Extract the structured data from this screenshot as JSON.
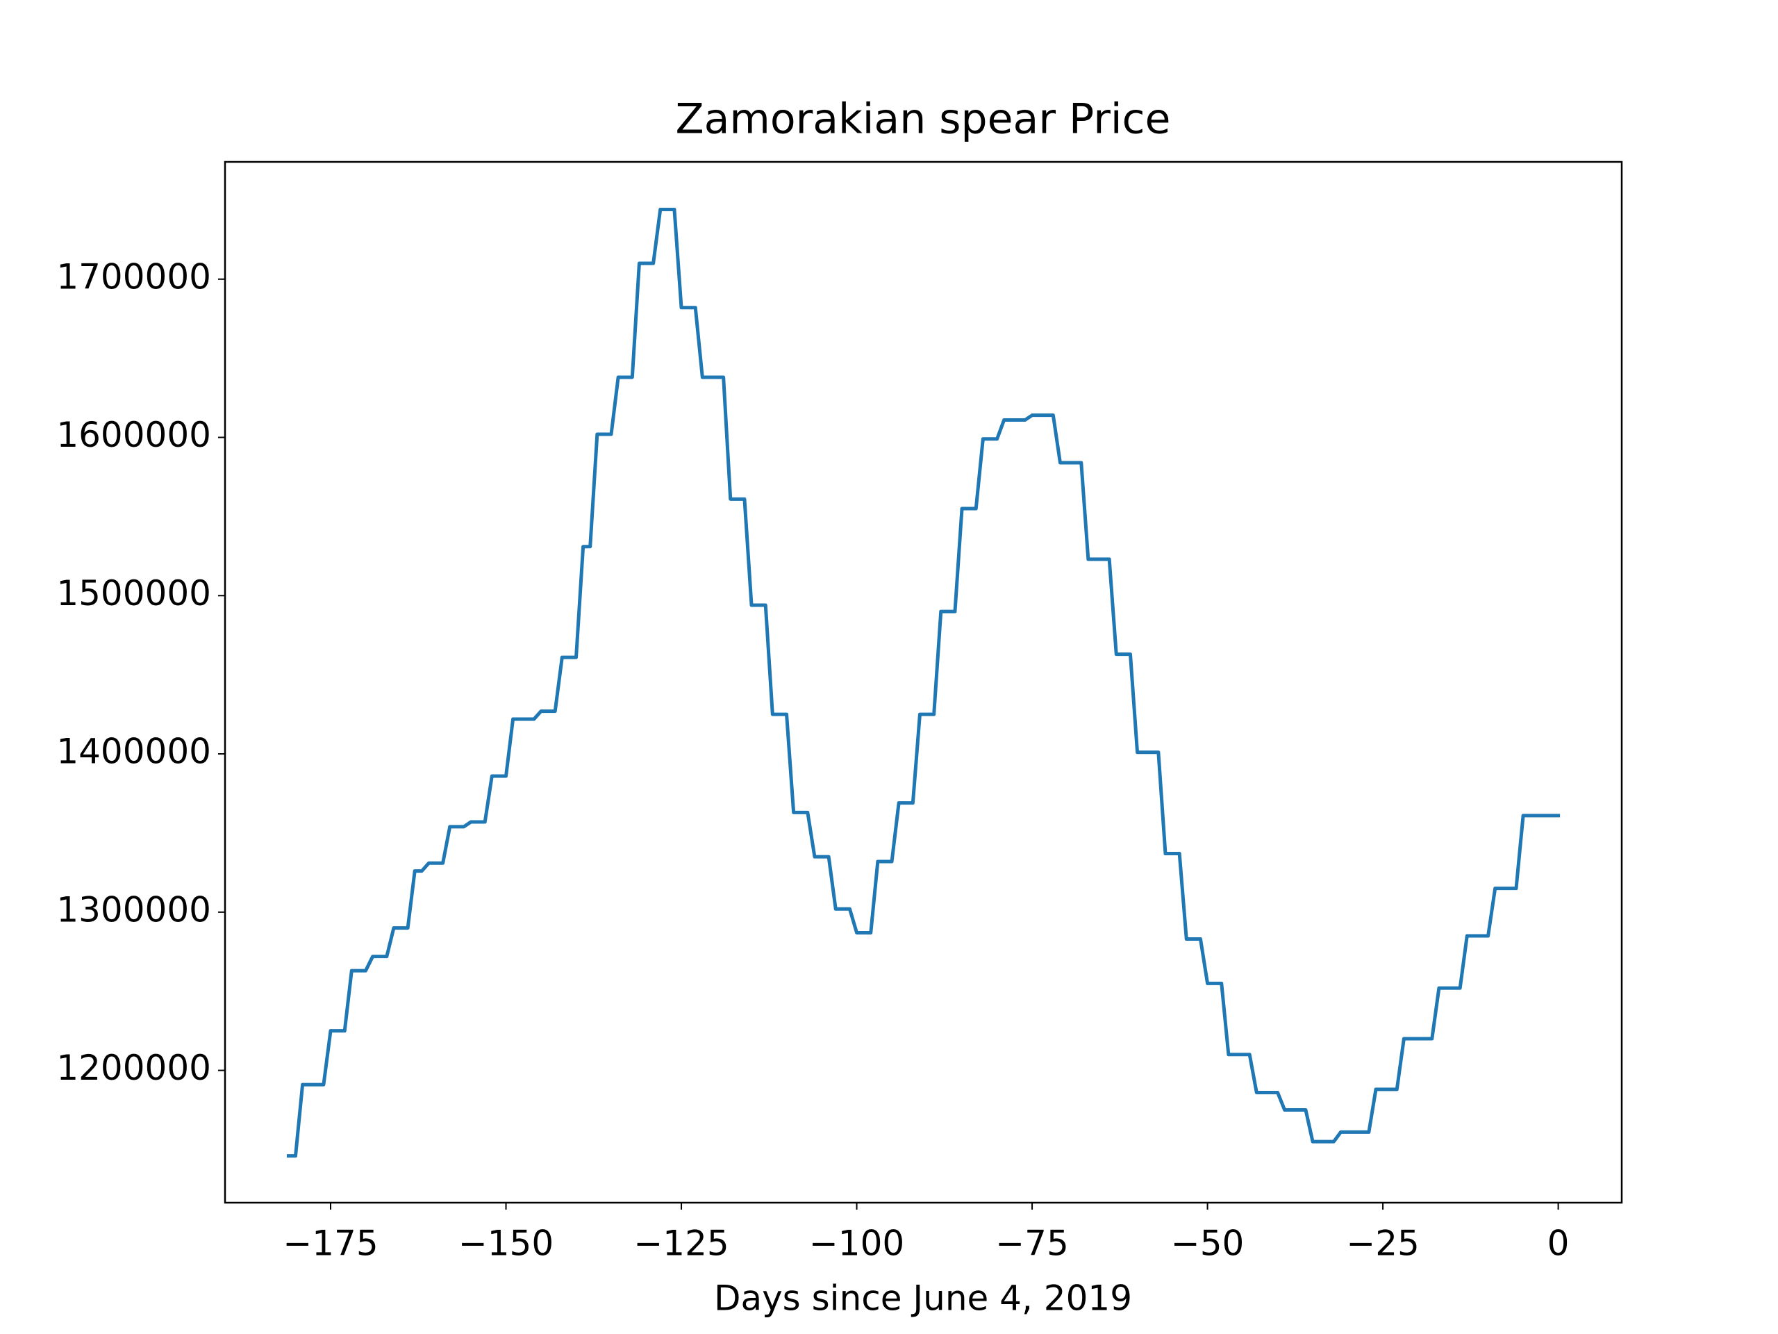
{
  "chart_data": {
    "type": "line",
    "title": "Zamorakian spear Price",
    "xlabel": "Days since June 4, 2019",
    "x": [
      -181,
      -180,
      -179,
      -178,
      -177,
      -176,
      -175,
      -174,
      -173,
      -172,
      -171,
      -170,
      -169,
      -168,
      -167,
      -166,
      -165,
      -164,
      -163,
      -162,
      -161,
      -160,
      -159,
      -158,
      -157,
      -156,
      -155,
      -154,
      -153,
      -152,
      -151,
      -150,
      -149,
      -148,
      -147,
      -146,
      -145,
      -144,
      -143,
      -142,
      -141,
      -140,
      -139,
      -138,
      -137,
      -136,
      -135,
      -134,
      -133,
      -132,
      -131,
      -130,
      -129,
      -128,
      -127,
      -126,
      -125,
      -124,
      -123,
      -122,
      -121,
      -120,
      -119,
      -118,
      -117,
      -116,
      -115,
      -114,
      -113,
      -112,
      -111,
      -110,
      -109,
      -108,
      -107,
      -106,
      -105,
      -104,
      -103,
      -102,
      -101,
      -100,
      -99,
      -98,
      -97,
      -96,
      -95,
      -94,
      -93,
      -92,
      -91,
      -90,
      -89,
      -88,
      -87,
      -86,
      -85,
      -84,
      -83,
      -82,
      -81,
      -80,
      -79,
      -78,
      -77,
      -76,
      -75,
      -74,
      -73,
      -72,
      -71,
      -70,
      -69,
      -68,
      -67,
      -66,
      -65,
      -64,
      -63,
      -62,
      -61,
      -60,
      -59,
      -58,
      -57,
      -56,
      -55,
      -54,
      -53,
      -52,
      -51,
      -50,
      -49,
      -48,
      -47,
      -46,
      -45,
      -44,
      -43,
      -42,
      -41,
      -40,
      -39,
      -38,
      -37,
      -36,
      -35,
      -34,
      -33,
      -32,
      -31,
      -30,
      -29,
      -28,
      -27,
      -26,
      -25,
      -24,
      -23,
      -22,
      -21,
      -20,
      -19,
      -18,
      -17,
      -16,
      -15,
      -14,
      -13,
      -12,
      -11,
      -10,
      -9,
      -8,
      -7,
      -6,
      -5,
      -4,
      -3,
      -2,
      -1,
      0
    ],
    "series": [
      {
        "color": "#1f77b4",
        "values": [
          1146000,
          1146000,
          1191000,
          1191000,
          1191000,
          1191000,
          1225000,
          1225000,
          1225000,
          1263000,
          1263000,
          1263000,
          1272000,
          1272000,
          1272000,
          1290000,
          1290000,
          1290000,
          1326000,
          1326000,
          1331000,
          1331000,
          1331000,
          1354000,
          1354000,
          1354000,
          1357000,
          1357000,
          1357000,
          1386000,
          1386000,
          1386000,
          1422000,
          1422000,
          1422000,
          1422000,
          1427000,
          1427000,
          1427000,
          1461000,
          1461000,
          1461000,
          1531000,
          1531000,
          1602000,
          1602000,
          1602000,
          1638000,
          1638000,
          1638000,
          1710000,
          1710000,
          1710000,
          1744000,
          1744000,
          1744000,
          1682000,
          1682000,
          1682000,
          1638000,
          1638000,
          1638000,
          1638000,
          1561000,
          1561000,
          1561000,
          1494000,
          1494000,
          1494000,
          1425000,
          1425000,
          1425000,
          1363000,
          1363000,
          1363000,
          1335000,
          1335000,
          1335000,
          1302000,
          1302000,
          1302000,
          1287000,
          1287000,
          1287000,
          1332000,
          1332000,
          1332000,
          1369000,
          1369000,
          1369000,
          1425000,
          1425000,
          1425000,
          1490000,
          1490000,
          1490000,
          1555000,
          1555000,
          1555000,
          1599000,
          1599000,
          1599000,
          1611000,
          1611000,
          1611000,
          1611000,
          1614000,
          1614000,
          1614000,
          1614000,
          1584000,
          1584000,
          1584000,
          1584000,
          1523000,
          1523000,
          1523000,
          1523000,
          1463000,
          1463000,
          1463000,
          1401000,
          1401000,
          1401000,
          1401000,
          1337000,
          1337000,
          1337000,
          1283000,
          1283000,
          1283000,
          1255000,
          1255000,
          1255000,
          1210000,
          1210000,
          1210000,
          1210000,
          1186000,
          1186000,
          1186000,
          1186000,
          1175000,
          1175000,
          1175000,
          1175000,
          1155000,
          1155000,
          1155000,
          1155000,
          1161000,
          1161000,
          1161000,
          1161000,
          1161000,
          1188000,
          1188000,
          1188000,
          1188000,
          1220000,
          1220000,
          1220000,
          1220000,
          1220000,
          1252000,
          1252000,
          1252000,
          1252000,
          1285000,
          1285000,
          1285000,
          1285000,
          1315000,
          1315000,
          1315000,
          1315000,
          1361000,
          1361000,
          1361000,
          1361000,
          1361000,
          1361000
        ]
      }
    ],
    "xlim": [
      -190.05,
      9.05
    ],
    "xticks": [
      {
        "value": -175,
        "label": "−175"
      },
      {
        "value": -150,
        "label": "−150"
      },
      {
        "value": -125,
        "label": "−125"
      },
      {
        "value": -100,
        "label": "−100"
      },
      {
        "value": -75,
        "label": "−75"
      },
      {
        "value": -50,
        "label": "−50"
      },
      {
        "value": -25,
        "label": "−25"
      },
      0
    ],
    "ylim": [
      1116400,
      1774100
    ],
    "yticks": [
      1200000,
      1300000,
      1400000,
      1500000,
      1600000,
      1700000
    ],
    "grid": false
  }
}
